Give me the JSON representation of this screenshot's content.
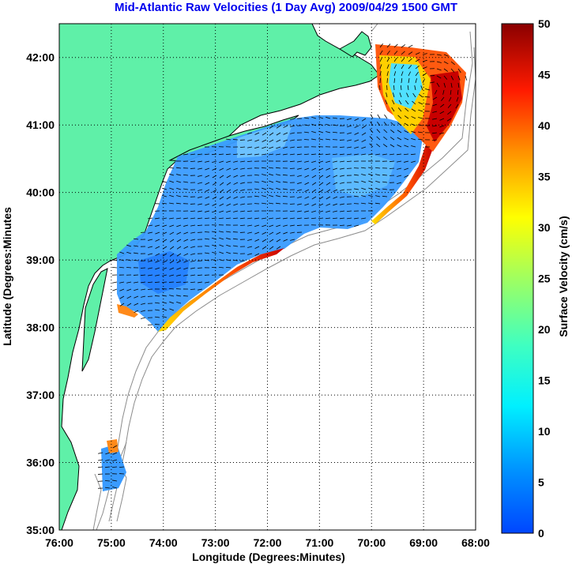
{
  "title": "Mid-Atlantic Raw Velocities (1 Day Avg) 2009/04/29 1500 GMT",
  "colors": {
    "land": "#5ff0a8",
    "ocean": "#ffffff",
    "bathymetry": "#8c8c8c",
    "title": "#0000ee"
  },
  "chart_data": {
    "type": "heatmap",
    "title": "Mid-Atlantic Raw Velocities (1 Day Avg) 2009/04/29 1500 GMT",
    "xlabel": "Longitude (Degrees:Minutes)",
    "ylabel": "Latitude (Degrees:Minutes",
    "x_ticks": [
      "76:00",
      "75:00",
      "74:00",
      "73:00",
      "72:00",
      "71:00",
      "70:00",
      "69:00",
      "68:00"
    ],
    "y_ticks": [
      "35:00",
      "36:00",
      "37:00",
      "38:00",
      "39:00",
      "40:00",
      "41:00",
      "42:00"
    ],
    "x_range_deg_west": [
      76,
      68
    ],
    "y_range_deg_north": [
      35,
      42.5
    ],
    "grid": true,
    "colorbar": {
      "label": "Surface Velocity (cm/s)",
      "min": 0,
      "max": 50,
      "ticks": [
        "0",
        "5",
        "10",
        "15",
        "20",
        "25",
        "30",
        "35",
        "40",
        "45",
        "50"
      ],
      "colormap": "jet"
    }
  }
}
